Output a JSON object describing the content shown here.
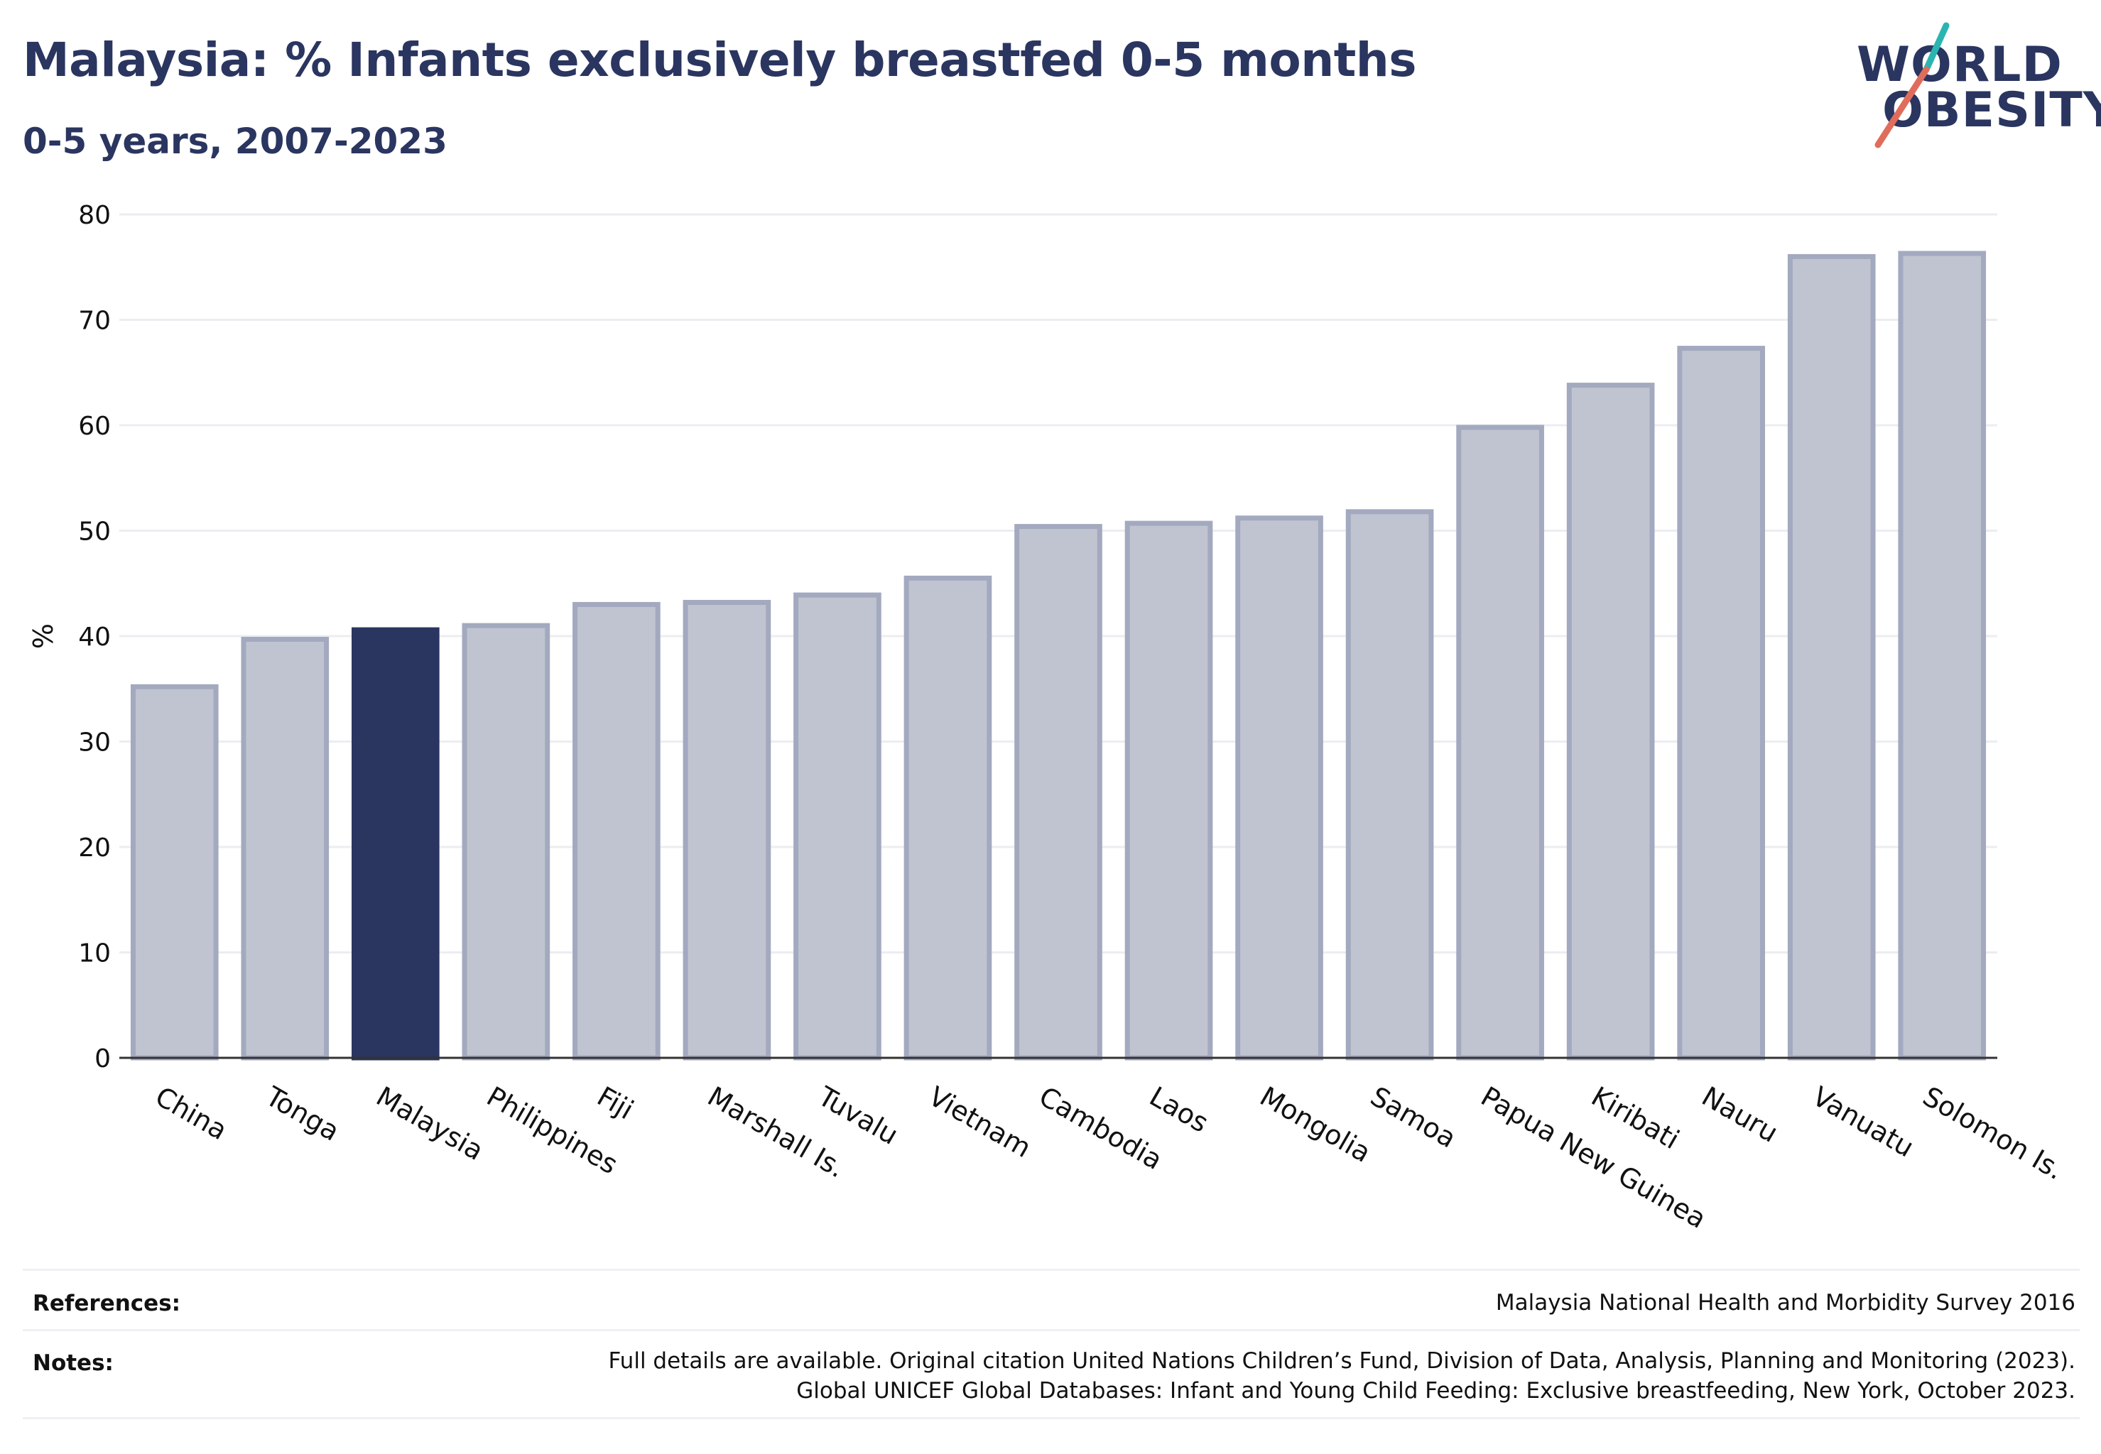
{
  "header": {
    "title": "Malaysia: % Infants exclusively breastfed 0-5 months",
    "subtitle": "0-5 years, 2007-2023"
  },
  "logo": {
    "line1": "WORLD",
    "line2": "OBESITY",
    "accent_colors": [
      "#2bb5b0",
      "#e06d5c"
    ]
  },
  "chart_data": {
    "type": "bar",
    "categories": [
      "China",
      "Tonga",
      "Malaysia",
      "Philippines",
      "Fiji",
      "Marshall Is.",
      "Tuvalu",
      "Vietnam",
      "Cambodia",
      "Laos",
      "Mongolia",
      "Samoa",
      "Papua New Guinea",
      "Kiribati",
      "Nauru",
      "Vanuatu",
      "Solomon Is."
    ],
    "values": [
      35.2,
      39.7,
      40.6,
      41.0,
      43.0,
      43.2,
      43.9,
      45.5,
      50.4,
      50.7,
      51.2,
      51.8,
      59.8,
      63.8,
      67.3,
      76.0,
      76.3
    ],
    "highlight": "Malaysia",
    "ylabel": "%",
    "xlabel": "",
    "ylim": [
      0,
      80
    ],
    "yticks": [
      0,
      10,
      20,
      30,
      40,
      50,
      60,
      70,
      80
    ],
    "grid": true,
    "legend": "none",
    "colors": {
      "bar": "#c0c4d0",
      "bar_border": "#a3a9bf",
      "highlight": "#2a3560",
      "grid": "#ebedf2",
      "axis": "#333333"
    }
  },
  "footer": {
    "references_label": "References:",
    "references_text": "Malaysia National Health and Morbidity Survey 2016",
    "notes_label": "Notes:",
    "notes_line1": "Full details are available. Original citation United Nations Children’s Fund, Division of Data, Analysis, Planning and Monitoring (2023).",
    "notes_line2": "Global UNICEF Global Databases: Infant and Young Child Feeding: Exclusive breastfeeding, New York, October 2023."
  }
}
